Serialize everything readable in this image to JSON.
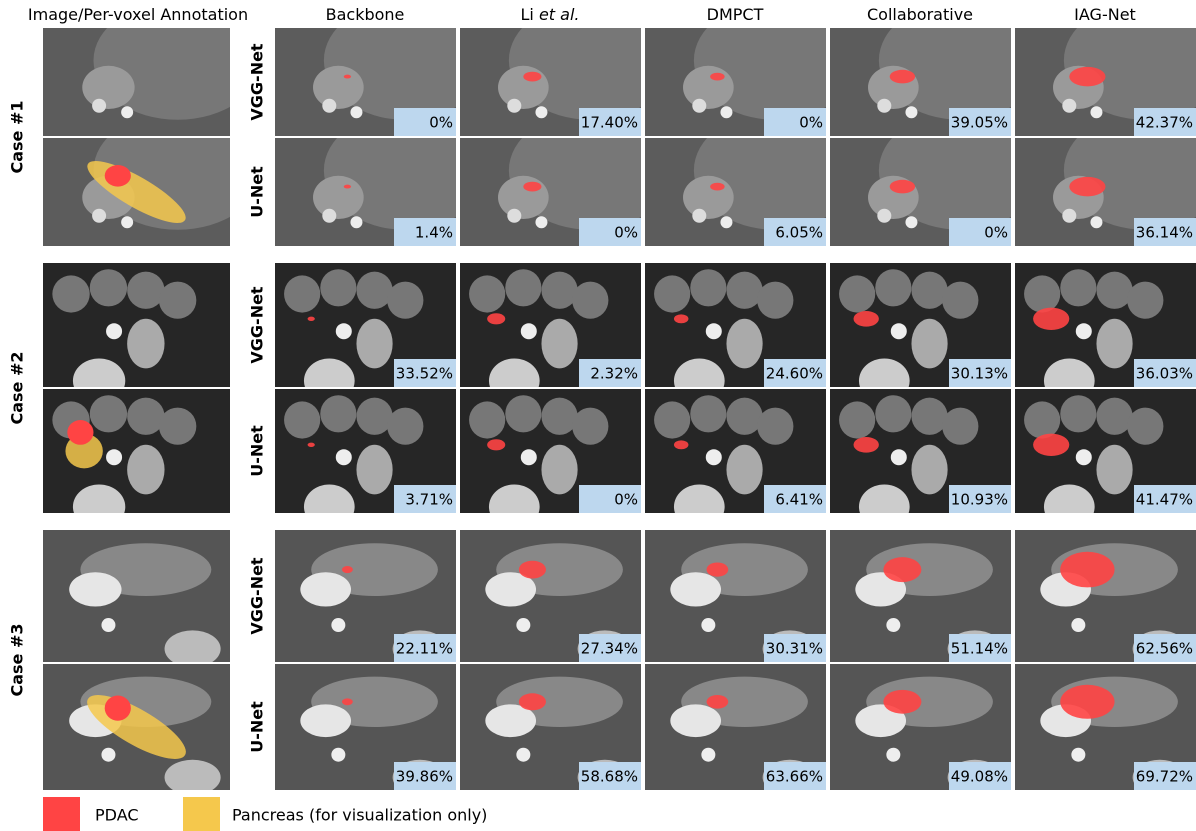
{
  "header": {
    "columns": [
      {
        "parts": [
          "Image/Per-voxel Annotation"
        ]
      },
      {
        "parts": [
          "Backbone"
        ]
      },
      {
        "parts": [
          "Li ",
          "et al."
        ]
      },
      {
        "parts": [
          "DMPCT"
        ]
      },
      {
        "parts": [
          "Collaborative"
        ]
      },
      {
        "parts": [
          "IAG-Net"
        ]
      }
    ]
  },
  "cases": [
    {
      "label": "Case #1",
      "rows": [
        {
          "label": "VGG-Net",
          "values": [
            "0%",
            "17.40%",
            "0%",
            "39.05%",
            "42.37%"
          ]
        },
        {
          "label": "U-Net",
          "values": [
            "1.4%",
            "0%",
            "6.05%",
            "0%",
            "36.14%"
          ]
        }
      ]
    },
    {
      "label": "Case #2",
      "rows": [
        {
          "label": "VGG-Net",
          "values": [
            "33.52%",
            "2.32%",
            "24.60%",
            "30.13%",
            "36.03%"
          ]
        },
        {
          "label": "U-Net",
          "values": [
            "3.71%",
            "0%",
            "6.41%",
            "10.93%",
            "41.47%"
          ]
        }
      ]
    },
    {
      "label": "Case #3",
      "rows": [
        {
          "label": "VGG-Net",
          "values": [
            "22.11%",
            "27.34%",
            "30.31%",
            "51.14%",
            "62.56%"
          ]
        },
        {
          "label": "U-Net",
          "values": [
            "39.86%",
            "58.68%",
            "63.66%",
            "49.08%",
            "69.72%"
          ]
        }
      ]
    }
  ],
  "legend": [
    "PDAC",
    "Pancreas (for visualization only)"
  ]
}
